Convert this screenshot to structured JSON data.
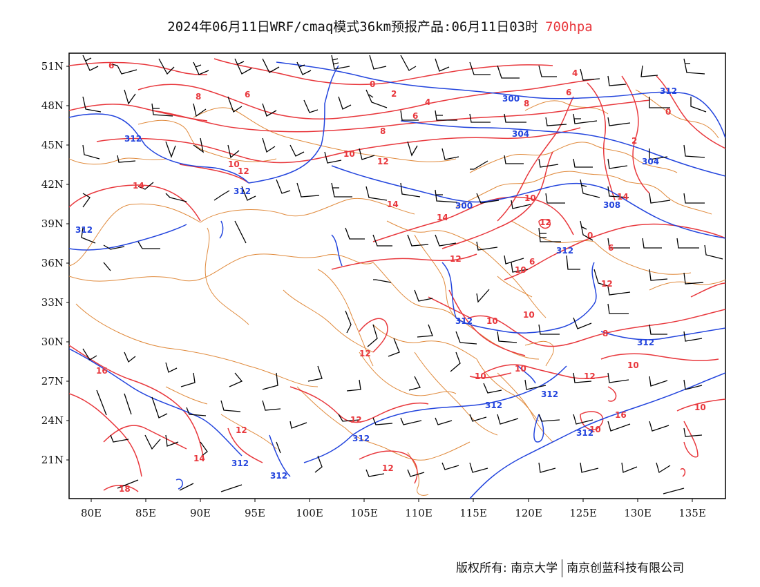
{
  "title": {
    "main": "2024年06月11日WRF/cmaq模式36km预报产品:06月11日03时",
    "level": "700hpa"
  },
  "axes": {
    "lat_labels": [
      "51N",
      "48N",
      "45N",
      "42N",
      "39N",
      "36N",
      "33N",
      "30N",
      "27N",
      "24N",
      "21N"
    ],
    "lon_labels": [
      "80E",
      "85E",
      "90E",
      "95E",
      "100E",
      "105E",
      "110E",
      "115E",
      "120E",
      "125E",
      "130E",
      "135E"
    ]
  },
  "colors": {
    "temperature_contour": "#e8373c",
    "height_contour": "#2244dd",
    "border": "#e08a3c",
    "wind_barb": "#000000"
  },
  "temperature_labels": [
    "6",
    "8",
    "6",
    "0",
    "2",
    "4",
    "6",
    "8",
    "10",
    "12",
    "10",
    "12",
    "14",
    "14",
    "12",
    "10",
    "12",
    "8",
    "6",
    "6",
    "4",
    "6",
    "2",
    "0",
    "10",
    "8",
    "12",
    "14",
    "12",
    "10",
    "10",
    "10",
    "10",
    "12",
    "12",
    "10",
    "10",
    "10",
    "12",
    "14",
    "16",
    "16",
    "18",
    "0",
    "12",
    "14"
  ],
  "height_labels": [
    "312",
    "312",
    "312",
    "300",
    "304",
    "304",
    "300",
    "308",
    "312",
    "312",
    "312",
    "312",
    "312",
    "312",
    "312",
    "312",
    "312",
    "312"
  ],
  "footer": {
    "copyright": "版权所有: 南京大学",
    "company": "南京创蓝科技有限公司"
  }
}
